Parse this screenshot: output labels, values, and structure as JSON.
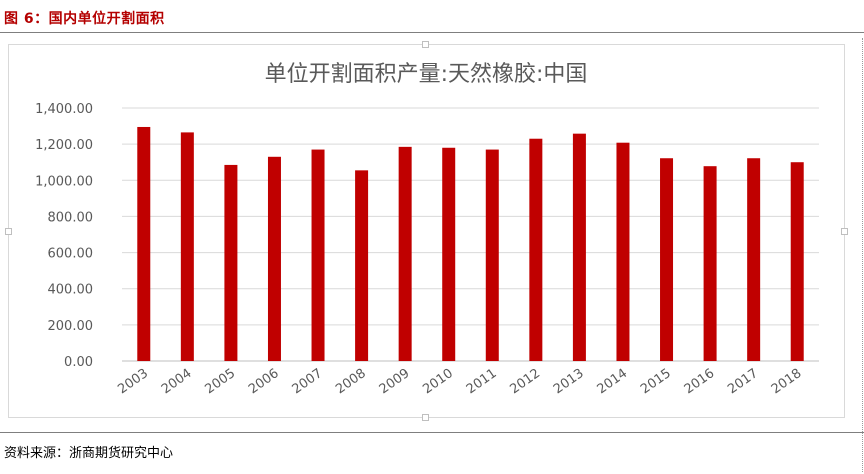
{
  "figure": {
    "caption": "图 6：国内单位开割面积",
    "source": "资料来源：浙商期货研究中心"
  },
  "chart_data": {
    "type": "bar",
    "title": "单位开割面积产量:天然橡胶:中国",
    "xlabel": "",
    "ylabel": "",
    "ylim": [
      0,
      1400
    ],
    "yticks": [
      "0.00",
      "200.00",
      "400.00",
      "600.00",
      "800.00",
      "1,000.00",
      "1,200.00",
      "1,400.00"
    ],
    "grid": true,
    "legend": "none",
    "bar_color": "#c00000",
    "categories": [
      "2003",
      "2004",
      "2005",
      "2006",
      "2007",
      "2008",
      "2009",
      "2010",
      "2011",
      "2012",
      "2013",
      "2014",
      "2015",
      "2016",
      "2017",
      "2018"
    ],
    "values": [
      1295,
      1265,
      1085,
      1130,
      1170,
      1055,
      1185,
      1180,
      1170,
      1230,
      1258,
      1208,
      1122,
      1078,
      1122,
      1100
    ]
  }
}
